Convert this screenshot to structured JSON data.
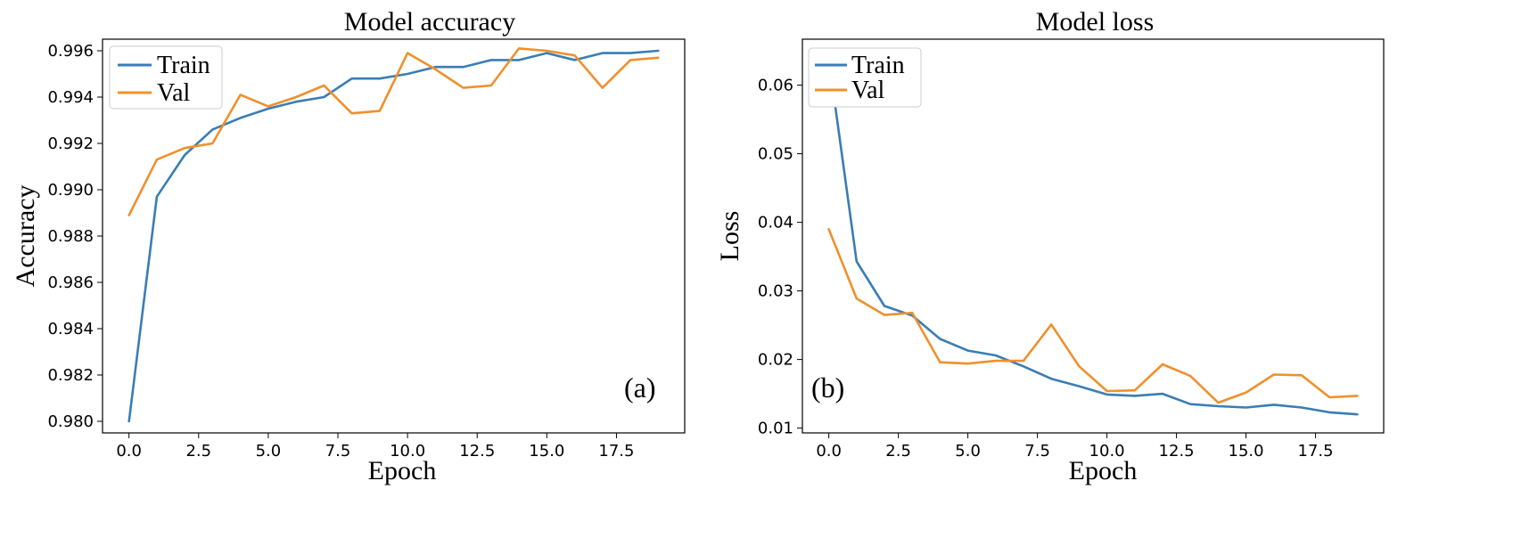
{
  "chart_data": [
    {
      "type": "line",
      "title": "Model accuracy",
      "xlabel": "Epoch",
      "ylabel": "Accuracy",
      "panel_label": "(a)",
      "legend_position": "top-left",
      "x": [
        0,
        1,
        2,
        3,
        4,
        5,
        6,
        7,
        8,
        9,
        10,
        11,
        12,
        13,
        14,
        15,
        16,
        17,
        18,
        19
      ],
      "xlim": [
        -0.95,
        19.95
      ],
      "ylim": [
        0.9795,
        0.9965
      ],
      "xticks": [
        0,
        2.5,
        5,
        7.5,
        10,
        12.5,
        15,
        17.5
      ],
      "xtick_labels": [
        "0.0",
        "2.5",
        "5.0",
        "7.5",
        "10.0",
        "12.5",
        "15.0",
        "17.5"
      ],
      "yticks": [
        0.98,
        0.982,
        0.984,
        0.986,
        0.988,
        0.99,
        0.992,
        0.994,
        0.996
      ],
      "ytick_labels": [
        "0.980",
        "0.982",
        "0.984",
        "0.986",
        "0.988",
        "0.990",
        "0.992",
        "0.994",
        "0.996"
      ],
      "series": [
        {
          "name": "Train",
          "color": "#3a7db5",
          "values": [
            0.98,
            0.9897,
            0.9915,
            0.9926,
            0.9931,
            0.9935,
            0.9938,
            0.994,
            0.9948,
            0.9948,
            0.995,
            0.9953,
            0.9953,
            0.9956,
            0.9956,
            0.9959,
            0.9956,
            0.9959,
            0.9959,
            0.996
          ]
        },
        {
          "name": "Val",
          "color": "#f0902c",
          "values": [
            0.9889,
            0.9913,
            0.9918,
            0.992,
            0.9941,
            0.9936,
            0.994,
            0.9945,
            0.9933,
            0.9934,
            0.9959,
            0.9952,
            0.9944,
            0.9945,
            0.9961,
            0.996,
            0.9958,
            0.9944,
            0.9956,
            0.9957
          ]
        }
      ]
    },
    {
      "type": "line",
      "title": "Model loss",
      "xlabel": "Epoch",
      "ylabel": "Loss",
      "panel_label": "(b)",
      "legend_position": "top-left",
      "x": [
        0,
        1,
        2,
        3,
        4,
        5,
        6,
        7,
        8,
        9,
        10,
        11,
        12,
        13,
        14,
        15,
        16,
        17,
        18,
        19
      ],
      "xlim": [
        -0.95,
        19.95
      ],
      "ylim": [
        0.0093,
        0.0667
      ],
      "xticks": [
        0,
        2.5,
        5,
        7.5,
        10,
        12.5,
        15,
        17.5
      ],
      "xtick_labels": [
        "0.0",
        "2.5",
        "5.0",
        "7.5",
        "10.0",
        "12.5",
        "15.0",
        "17.5"
      ],
      "yticks": [
        0.01,
        0.02,
        0.03,
        0.04,
        0.05,
        0.06
      ],
      "ytick_labels": [
        "0.01",
        "0.02",
        "0.03",
        "0.04",
        "0.05",
        "0.06"
      ],
      "series": [
        {
          "name": "Train",
          "color": "#3a7db5",
          "values": [
            0.0638,
            0.0343,
            0.0278,
            0.0264,
            0.023,
            0.0213,
            0.0206,
            0.019,
            0.0172,
            0.0161,
            0.0149,
            0.0147,
            0.015,
            0.0135,
            0.0132,
            0.013,
            0.0134,
            0.013,
            0.0123,
            0.012
          ]
        },
        {
          "name": "Val",
          "color": "#f0902c",
          "values": [
            0.039,
            0.0289,
            0.0265,
            0.0268,
            0.0196,
            0.0194,
            0.0198,
            0.0198,
            0.0251,
            0.019,
            0.0154,
            0.0155,
            0.0193,
            0.0176,
            0.0137,
            0.0152,
            0.0178,
            0.0177,
            0.0145,
            0.0147
          ]
        }
      ]
    }
  ]
}
